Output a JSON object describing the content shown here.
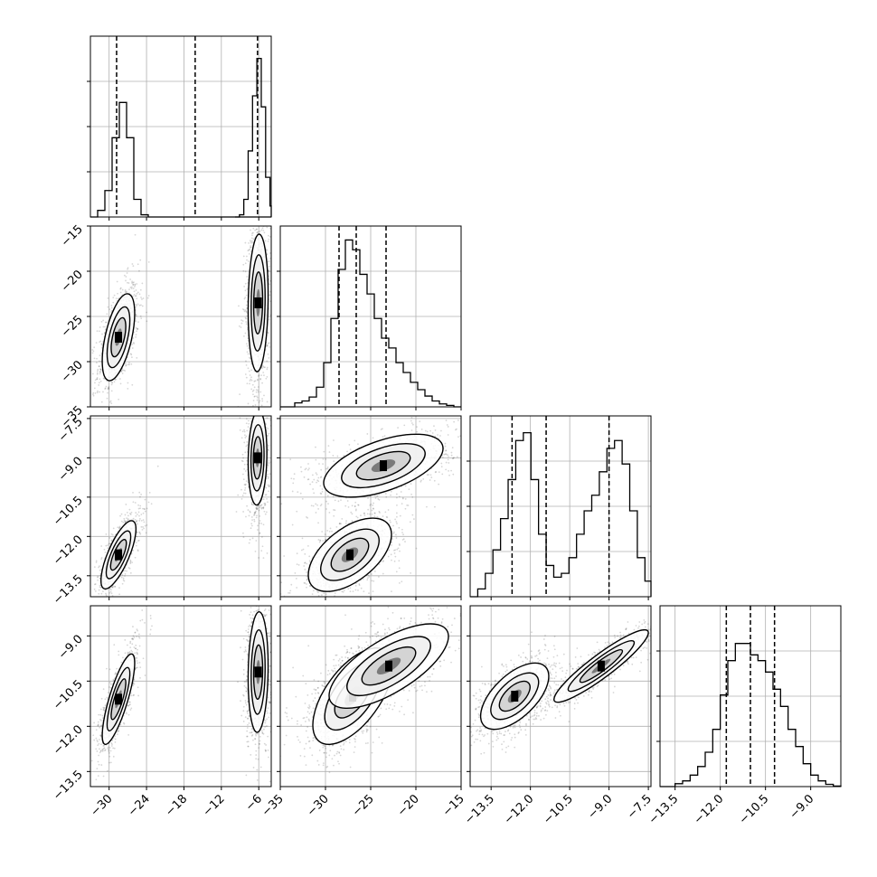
{
  "chart_data": {
    "type": "corner",
    "title": "",
    "parameters": [
      {
        "index": 0,
        "label": "",
        "range": [
          -33,
          -4
        ],
        "ticks": [
          {
            "v": -30,
            "t": "−30"
          },
          {
            "v": -24,
            "t": "−24"
          },
          {
            "v": -18,
            "t": "−18"
          },
          {
            "v": -12,
            "t": "−12"
          },
          {
            "v": -6,
            "t": "−6"
          }
        ],
        "quantiles": [
          -28.8,
          -16.2,
          -6.2
        ]
      },
      {
        "index": 1,
        "label": "",
        "range": [
          -35,
          -15
        ],
        "ticks": [
          {
            "v": -35,
            "t": "−35"
          },
          {
            "v": -30,
            "t": "−30"
          },
          {
            "v": -25,
            "t": "−25"
          },
          {
            "v": -20,
            "t": "−20"
          },
          {
            "v": -15,
            "t": "−15"
          }
        ],
        "quantiles": [
          -28.5,
          -26.6,
          -23.3
        ]
      },
      {
        "index": 2,
        "label": "",
        "range": [
          -14.3,
          -7.4
        ],
        "ticks": [
          {
            "v": -13.5,
            "t": "−13.5"
          },
          {
            "v": -12.0,
            "t": "−12.0"
          },
          {
            "v": -10.5,
            "t": "−10.5"
          },
          {
            "v": -9.0,
            "t": "−9.0"
          },
          {
            "v": -7.5,
            "t": "−7.5"
          }
        ],
        "quantiles": [
          -12.7,
          -11.4,
          -9.0
        ]
      },
      {
        "index": 3,
        "label": "",
        "range": [
          -14.0,
          -8.0
        ],
        "ticks": [
          {
            "v": -13.5,
            "t": "−13.5"
          },
          {
            "v": -12.0,
            "t": "−12.0"
          },
          {
            "v": -10.5,
            "t": "−10.5"
          },
          {
            "v": -9.0,
            "t": "−9.0"
          }
        ],
        "quantiles": [
          -11.8,
          -11.0,
          -10.2
        ]
      }
    ],
    "histograms": [
      {
        "param": 0,
        "ymax": 0.78,
        "bins_lo": -33,
        "bin_w": 1.16,
        "counts": [
          0,
          0.03,
          0.12,
          0.36,
          0.52,
          0.36,
          0.08,
          0.01,
          0,
          0,
          0,
          0,
          0,
          0,
          0,
          0,
          0,
          0,
          0,
          0,
          0,
          0,
          0,
          0,
          0,
          0,
          0,
          0,
          0,
          0,
          0,
          0,
          0,
          0,
          0,
          0,
          0,
          0
        ]
      },
      {
        "param": 0,
        "overlay": true,
        "ymax": 0.78,
        "bins_lo": -9.8,
        "bin_w": 0.7,
        "counts": [
          0,
          0.01,
          0.08,
          0.3,
          0.55,
          0.72,
          0.5,
          0.18,
          0.05,
          0.01,
          0
        ]
      },
      {
        "param": 1,
        "ymax": 0.35,
        "bins_lo": -35,
        "bin_w": 0.8,
        "counts": [
          0,
          0,
          0.008,
          0.012,
          0.02,
          0.04,
          0.09,
          0.18,
          0.28,
          0.34,
          0.32,
          0.27,
          0.23,
          0.18,
          0.14,
          0.12,
          0.09,
          0.07,
          0.05,
          0.035,
          0.022,
          0.012,
          0.006,
          0.003,
          0
        ]
      },
      {
        "param": 2,
        "ymax": 0.22,
        "bins_lo": -14.3,
        "bin_w": 0.29,
        "counts": [
          0,
          0.01,
          0.03,
          0.06,
          0.1,
          0.15,
          0.2,
          0.21,
          0.15,
          0.08,
          0.04,
          0.025,
          0.03,
          0.05,
          0.08,
          0.11,
          0.13,
          0.16,
          0.19,
          0.2,
          0.17,
          0.11,
          0.05,
          0.02,
          0.005
        ]
      },
      {
        "param": 3,
        "ymax": 0.3,
        "bins_lo": -14.0,
        "bin_w": 0.25,
        "counts": [
          0,
          0,
          0.005,
          0.01,
          0.02,
          0.035,
          0.06,
          0.1,
          0.16,
          0.22,
          0.25,
          0.25,
          0.23,
          0.22,
          0.2,
          0.17,
          0.14,
          0.1,
          0.07,
          0.04,
          0.02,
          0.01,
          0.004,
          0.001
        ]
      }
    ],
    "clusters": [
      {
        "x": 0,
        "y": 1,
        "blobs": [
          {
            "cx": -28.5,
            "cy": -27.3,
            "sx": 1.3,
            "sy": 2.4,
            "rho": 0.55,
            "w": 1.0
          },
          {
            "cx": -6.1,
            "cy": -23.5,
            "sx": 0.8,
            "sy": 3.8,
            "rho": 0.1,
            "w": 1.1
          }
        ]
      },
      {
        "x": 0,
        "y": 2,
        "blobs": [
          {
            "cx": -28.5,
            "cy": -12.7,
            "sx": 1.4,
            "sy": 0.65,
            "rho": 0.75,
            "w": 1.0
          },
          {
            "cx": -6.2,
            "cy": -9.0,
            "sx": 0.75,
            "sy": 0.9,
            "rho": 0.1,
            "w": 1.0
          }
        ]
      },
      {
        "x": 1,
        "y": 2,
        "blobs": [
          {
            "cx": -27.3,
            "cy": -12.7,
            "sx": 2.3,
            "sy": 0.7,
            "rho": 0.55,
            "w": 1.0
          },
          {
            "cx": -23.6,
            "cy": -9.3,
            "sx": 3.3,
            "sy": 0.6,
            "rho": 0.55,
            "w": 1.0
          }
        ]
      },
      {
        "x": 0,
        "y": 3,
        "blobs": [
          {
            "cx": -28.5,
            "cy": -11.1,
            "sx": 1.3,
            "sy": 0.75,
            "rho": 0.8,
            "w": 1.0
          },
          {
            "cx": -6.1,
            "cy": -10.2,
            "sx": 0.8,
            "sy": 1.0,
            "rho": 0.1,
            "w": 1.0
          }
        ]
      },
      {
        "x": 1,
        "y": 3,
        "blobs": [
          {
            "cx": -27.0,
            "cy": -11.0,
            "sx": 2.2,
            "sy": 0.8,
            "rho": 0.6,
            "w": 1.0
          },
          {
            "cx": -23.0,
            "cy": -10.0,
            "sx": 3.3,
            "sy": 0.7,
            "rho": 0.7,
            "w": 0.7
          }
        ]
      },
      {
        "x": 2,
        "y": 3,
        "blobs": [
          {
            "cx": -12.6,
            "cy": -11.0,
            "sx": 0.65,
            "sy": 0.55,
            "rho": 0.6,
            "w": 1.0
          },
          {
            "cx": -9.3,
            "cy": -10.0,
            "sx": 0.9,
            "sy": 0.6,
            "rho": 0.92,
            "w": 1.0
          }
        ]
      }
    ]
  }
}
